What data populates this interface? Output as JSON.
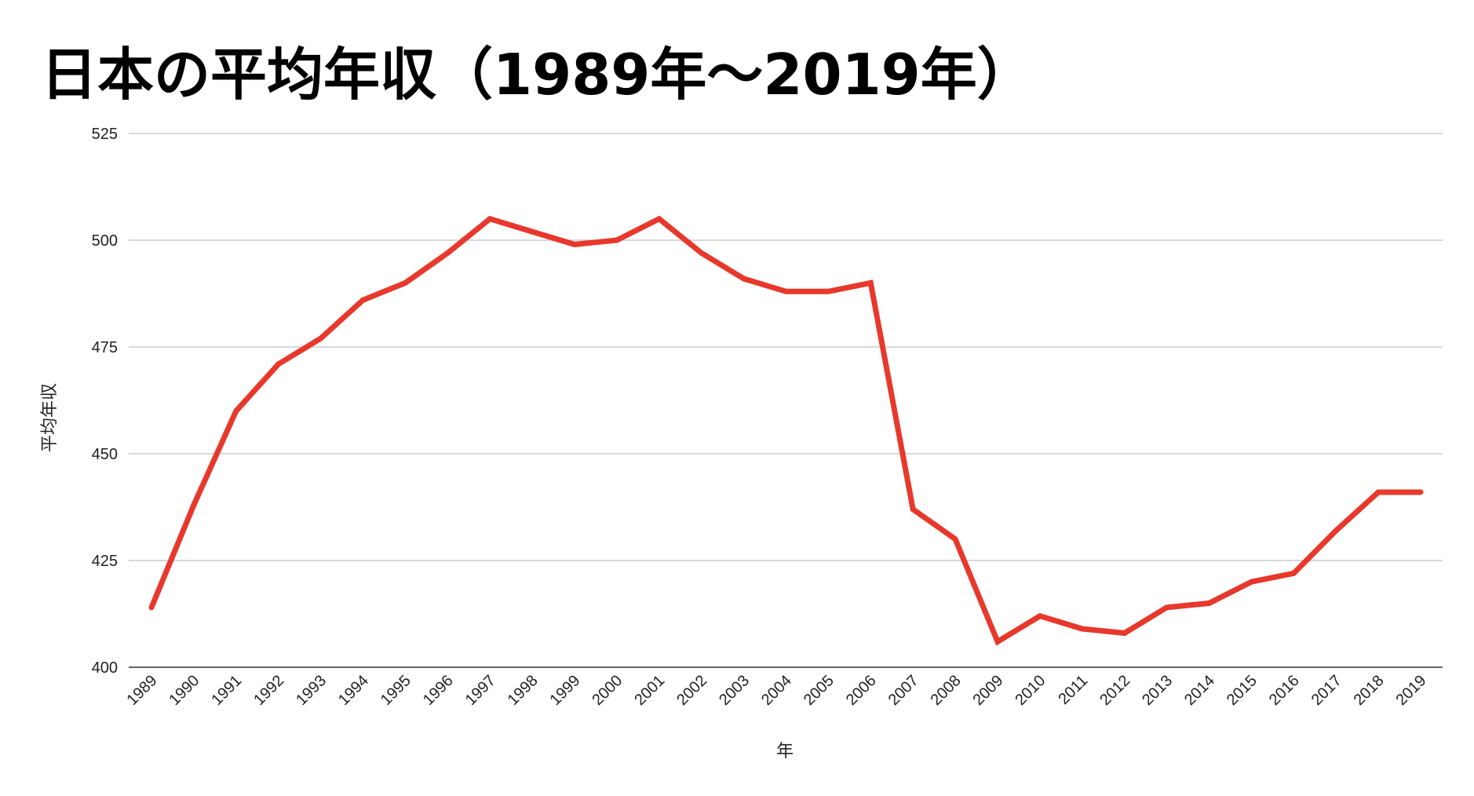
{
  "chart_data": {
    "type": "line",
    "title": "日本の平均年収（1989年～2019年）",
    "xlabel": "年",
    "ylabel": "平均年収",
    "ylim": [
      400,
      525
    ],
    "yticks": [
      400,
      425,
      450,
      475,
      500,
      525
    ],
    "grid": true,
    "legend": "none",
    "line_color": "#e8382c",
    "grid_color": "#cccccc",
    "categories": [
      "1989",
      "1990",
      "1991",
      "1992",
      "1993",
      "1994",
      "1995",
      "1996",
      "1997",
      "1998",
      "1999",
      "2000",
      "2001",
      "2002",
      "2003",
      "2004",
      "2005",
      "2006",
      "2007",
      "2008",
      "2009",
      "2010",
      "2011",
      "2012",
      "2013",
      "2014",
      "2015",
      "2016",
      "2017",
      "2018",
      "2019"
    ],
    "series": [
      {
        "values": [
          414,
          438,
          460,
          471,
          477,
          486,
          490,
          497,
          505,
          502,
          499,
          500,
          505,
          497,
          491,
          488,
          488,
          490,
          437,
          430,
          406,
          412,
          409,
          408,
          414,
          415,
          420,
          422,
          432,
          441,
          441
        ]
      }
    ]
  }
}
